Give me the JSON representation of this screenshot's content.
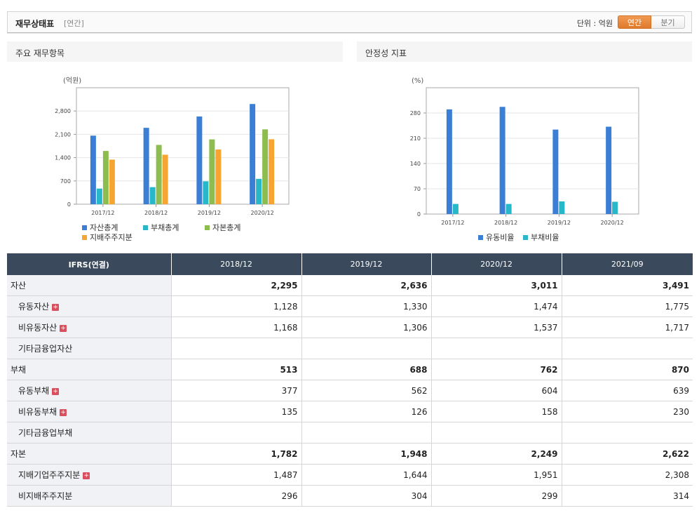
{
  "header": {
    "title": "재무상태표",
    "subtitle": "[연간]",
    "unit_label": "단위 : 억원",
    "toggle_annual": "연간",
    "toggle_quarter": "분기"
  },
  "colors": {
    "blue": "#3a7fd5",
    "teal": "#27b7c9",
    "green": "#8cbd4e",
    "orange": "#f6a532",
    "table_header": "#3a4a5c",
    "accent": "#e8853a"
  },
  "panels": {
    "left_title": "주요 재무항목",
    "right_title": "안정성 지표"
  },
  "chart_data": [
    {
      "type": "bar",
      "title": "주요 재무항목",
      "ylabel": "(억원)",
      "categories": [
        "2017/12",
        "2018/12",
        "2019/12",
        "2020/12"
      ],
      "ylim": [
        0,
        3500
      ],
      "yticks": [
        0,
        700,
        1400,
        2100,
        2800
      ],
      "ytick_labels": [
        "0",
        "700",
        "1,400",
        "2,100",
        "2,800"
      ],
      "legend_position": "bottom",
      "series": [
        {
          "name": "자산총계",
          "color": "#3a7fd5",
          "values": [
            2060,
            2295,
            2636,
            3011
          ]
        },
        {
          "name": "부채총계",
          "color": "#27b7c9",
          "values": [
            470,
            513,
            688,
            762
          ]
        },
        {
          "name": "자본총계",
          "color": "#8cbd4e",
          "values": [
            1600,
            1782,
            1948,
            2249
          ]
        },
        {
          "name": "지배주주지분",
          "color": "#f6a532",
          "values": [
            1340,
            1487,
            1644,
            1951
          ]
        }
      ]
    },
    {
      "type": "bar",
      "title": "안정성 지표",
      "ylabel": "(%)",
      "categories": [
        "2017/12",
        "2018/12",
        "2019/12",
        "2020/12"
      ],
      "ylim": [
        0,
        350
      ],
      "yticks": [
        0,
        70,
        140,
        210,
        280
      ],
      "ytick_labels": [
        "0",
        "70",
        "140",
        "210",
        "280"
      ],
      "legend_position": "bottom",
      "series": [
        {
          "name": "유동비율",
          "color": "#3a7fd5",
          "values": [
            290,
            297,
            234,
            242
          ]
        },
        {
          "name": "부채비율",
          "color": "#27b7c9",
          "values": [
            28,
            28,
            35,
            34
          ]
        }
      ]
    }
  ],
  "table": {
    "headers": [
      "IFRS(연결)",
      "2018/12",
      "2019/12",
      "2020/12",
      "2021/09"
    ],
    "rows": [
      {
        "label": "자산",
        "values": [
          "2,295",
          "2,636",
          "3,011",
          "3,491"
        ]
      },
      {
        "label": "유동자산",
        "values": [
          "1,128",
          "1,330",
          "1,474",
          "1,775"
        ]
      },
      {
        "label": "비유동자산",
        "values": [
          "1,168",
          "1,306",
          "1,537",
          "1,717"
        ]
      },
      {
        "label": "기타금융업자산",
        "values": [
          "",
          "",
          "",
          ""
        ]
      },
      {
        "label": "부채",
        "values": [
          "513",
          "688",
          "762",
          "870"
        ]
      },
      {
        "label": "유동부채",
        "values": [
          "377",
          "562",
          "604",
          "639"
        ]
      },
      {
        "label": "비유동부채",
        "values": [
          "135",
          "126",
          "158",
          "230"
        ]
      },
      {
        "label": "기타금융업부채",
        "values": [
          "",
          "",
          "",
          ""
        ]
      },
      {
        "label": "자본",
        "values": [
          "1,782",
          "1,948",
          "2,249",
          "2,622"
        ]
      },
      {
        "label": "지배기업주주지분",
        "values": [
          "1,487",
          "1,644",
          "1,951",
          "2,308"
        ]
      },
      {
        "label": "비지배주주지분",
        "values": [
          "296",
          "304",
          "299",
          "314"
        ]
      }
    ],
    "expand_icon": "+"
  }
}
